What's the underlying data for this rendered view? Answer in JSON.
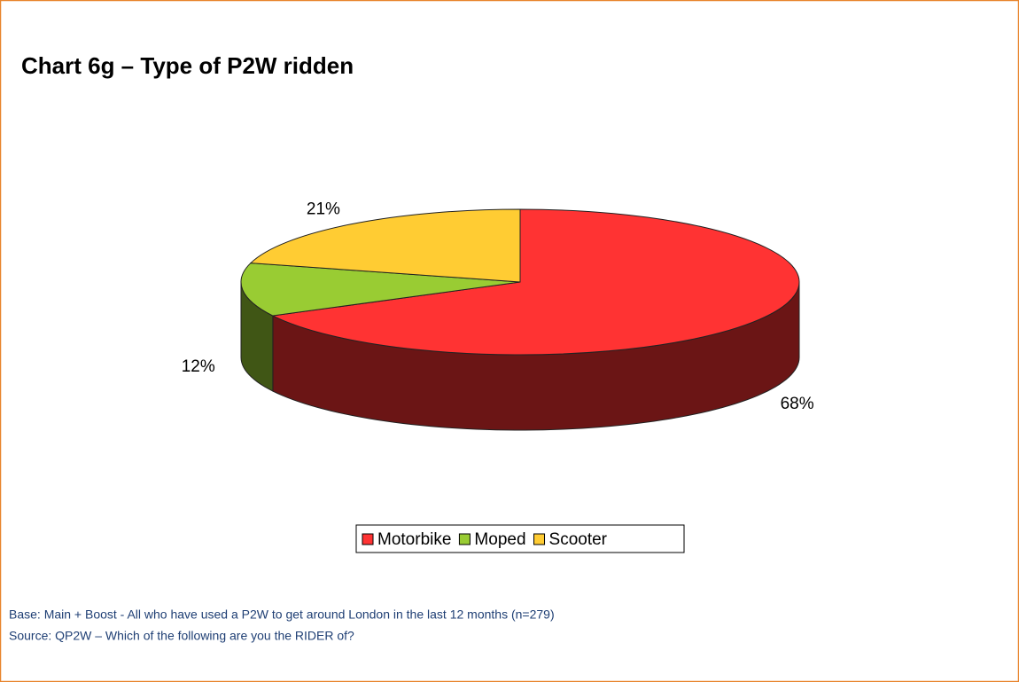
{
  "chart_data": {
    "type": "pie",
    "title": "Chart 6g – Type of P2W ridden",
    "categories": [
      "Motorbike",
      "Moped",
      "Scooter"
    ],
    "values": [
      68,
      12,
      21
    ],
    "value_labels": [
      "68%",
      "12%",
      "21%"
    ],
    "colors": [
      "#ff3333",
      "#99cc33",
      "#ffcc33"
    ],
    "legend": "bottom",
    "notes": [
      "Base: Main + Boost - All who have used a P2W to get around London in the last 12 months (n=279)",
      "Source:  QP2W – Which of the following are you the RIDER of?"
    ]
  }
}
